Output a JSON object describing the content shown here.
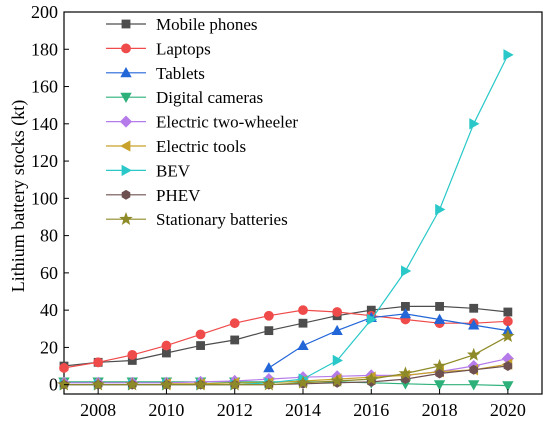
{
  "chart_data": {
    "type": "line",
    "title": "",
    "xlabel": "",
    "ylabel": "Lithium battery stocks (kt)",
    "xlim": [
      2007,
      2021
    ],
    "ylim": [
      -5,
      200
    ],
    "xticks": [
      2008,
      2010,
      2012,
      2014,
      2016,
      2018,
      2020
    ],
    "yticks": [
      0,
      20,
      40,
      60,
      80,
      100,
      120,
      140,
      160,
      180,
      200
    ],
    "grid": false,
    "legend_position": "top-left",
    "series": [
      {
        "name": "Mobile phones",
        "color": "#4d4d4d",
        "marker": "square",
        "x": [
          2007,
          2008,
          2009,
          2010,
          2011,
          2012,
          2013,
          2014,
          2015,
          2016,
          2017,
          2018,
          2019,
          2020
        ],
        "y": [
          10,
          12,
          13,
          17,
          21,
          24,
          29,
          33,
          37,
          40,
          42,
          42,
          41,
          39
        ]
      },
      {
        "name": "Laptops",
        "color": "#f04b4b",
        "marker": "circle",
        "x": [
          2007,
          2008,
          2009,
          2010,
          2011,
          2012,
          2013,
          2014,
          2015,
          2016,
          2017,
          2018,
          2019,
          2020
        ],
        "y": [
          9,
          12,
          16,
          21,
          27,
          33,
          37,
          40,
          39,
          37,
          35,
          33,
          33,
          34
        ]
      },
      {
        "name": "Tablets",
        "color": "#2266d8",
        "marker": "triangle-up",
        "x": [
          2013,
          2014,
          2015,
          2016,
          2017,
          2018,
          2019,
          2020
        ],
        "y": [
          9,
          21,
          29,
          36,
          38,
          35,
          32,
          29
        ]
      },
      {
        "name": "Digital cameras",
        "color": "#2eb07a",
        "marker": "triangle-down",
        "x": [
          2007,
          2008,
          2009,
          2010,
          2011,
          2012,
          2013,
          2014,
          2015,
          2016,
          2017,
          2018,
          2019,
          2020
        ],
        "y": [
          1.5,
          1.5,
          1.5,
          1.5,
          1.5,
          1.5,
          1.5,
          1.5,
          1.5,
          1,
          0.5,
          0,
          0,
          -0.5
        ]
      },
      {
        "name": "Electric two-wheeler",
        "color": "#b57bea",
        "marker": "diamond",
        "x": [
          2007,
          2008,
          2009,
          2010,
          2011,
          2012,
          2013,
          2014,
          2015,
          2016,
          2017,
          2018,
          2019,
          2020
        ],
        "y": [
          1,
          1,
          1,
          1,
          1.5,
          2,
          3,
          4,
          4.5,
          5,
          5,
          7,
          10,
          14
        ]
      },
      {
        "name": "Electric tools",
        "color": "#c8a22a",
        "marker": "triangle-left",
        "x": [
          2010,
          2011,
          2012,
          2013,
          2014,
          2015,
          2016,
          2017,
          2018,
          2019,
          2020
        ],
        "y": [
          0.5,
          0.5,
          1,
          1,
          2,
          3,
          4,
          5,
          7,
          8,
          11
        ]
      },
      {
        "name": "BEV",
        "color": "#2ac8c8",
        "marker": "triangle-right",
        "x": [
          2007,
          2008,
          2009,
          2010,
          2011,
          2012,
          2013,
          2014,
          2015,
          2016,
          2017,
          2018,
          2019,
          2020
        ],
        "y": [
          0,
          0,
          0,
          0,
          0,
          0,
          1,
          3,
          13,
          35,
          61,
          94,
          140,
          177
        ]
      },
      {
        "name": "PHEV",
        "color": "#6e5050",
        "marker": "hexagon",
        "x": [
          2007,
          2008,
          2009,
          2010,
          2011,
          2012,
          2013,
          2014,
          2015,
          2016,
          2017,
          2018,
          2019,
          2020
        ],
        "y": [
          0,
          0,
          0,
          0,
          0,
          0,
          0,
          0.5,
          1,
          1.5,
          3,
          6,
          8,
          10
        ]
      },
      {
        "name": "Stationary batteries",
        "color": "#8f8a28",
        "marker": "star",
        "x": [
          2007,
          2008,
          2009,
          2010,
          2011,
          2012,
          2013,
          2014,
          2015,
          2016,
          2017,
          2018,
          2019,
          2020
        ],
        "y": [
          0,
          0,
          0,
          0,
          0,
          0,
          0,
          1,
          2,
          3,
          6,
          10,
          16,
          26
        ]
      }
    ]
  }
}
